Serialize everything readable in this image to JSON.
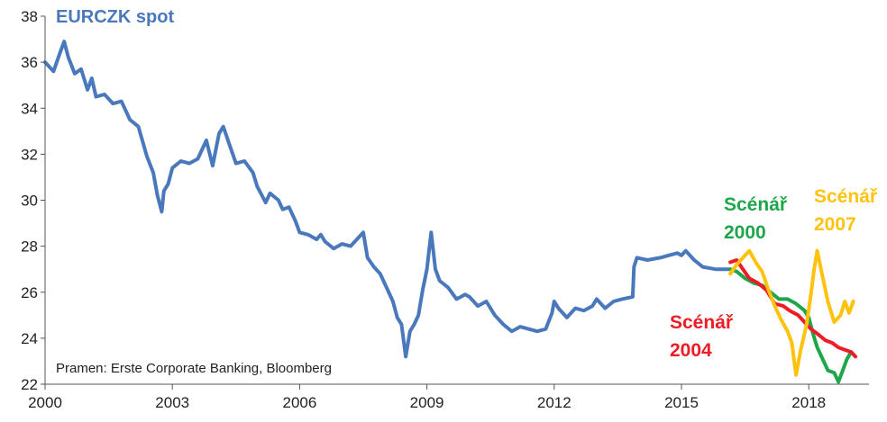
{
  "chart_data": {
    "type": "line",
    "title": "EURCZK spot",
    "xlabel": "",
    "ylabel": "",
    "xlim": [
      2000,
      2019.1
    ],
    "ylim": [
      22,
      38
    ],
    "x_ticks": [
      "2000",
      "2003",
      "2006",
      "2009",
      "2012",
      "2015",
      "2018"
    ],
    "y_ticks": [
      "22",
      "24",
      "26",
      "28",
      "30",
      "32",
      "34",
      "36",
      "38"
    ],
    "grid": false,
    "note": "Pramen: Erste Corporate Banking, Bloomberg",
    "colors": {
      "spot": "#4a78bd",
      "s2000": "#1fa64a",
      "s2004": "#ee1c25",
      "s2007": "#ffc20e",
      "axis": "#555555",
      "text": "#222222"
    },
    "series": [
      {
        "name": "EURCZK spot",
        "key": "spot",
        "points": [
          [
            2000.0,
            36.0
          ],
          [
            2000.2,
            35.6
          ],
          [
            2000.35,
            36.4
          ],
          [
            2000.45,
            36.9
          ],
          [
            2000.55,
            36.2
          ],
          [
            2000.7,
            35.5
          ],
          [
            2000.85,
            35.7
          ],
          [
            2001.0,
            34.8
          ],
          [
            2001.1,
            35.3
          ],
          [
            2001.2,
            34.5
          ],
          [
            2001.4,
            34.6
          ],
          [
            2001.6,
            34.2
          ],
          [
            2001.8,
            34.3
          ],
          [
            2002.0,
            33.5
          ],
          [
            2002.2,
            33.2
          ],
          [
            2002.4,
            31.9
          ],
          [
            2002.55,
            31.2
          ],
          [
            2002.65,
            30.2
          ],
          [
            2002.75,
            29.5
          ],
          [
            2002.8,
            30.4
          ],
          [
            2002.9,
            30.7
          ],
          [
            2003.0,
            31.4
          ],
          [
            2003.2,
            31.7
          ],
          [
            2003.4,
            31.6
          ],
          [
            2003.6,
            31.8
          ],
          [
            2003.8,
            32.6
          ],
          [
            2003.95,
            31.5
          ],
          [
            2004.1,
            32.9
          ],
          [
            2004.2,
            33.2
          ],
          [
            2004.35,
            32.4
          ],
          [
            2004.5,
            31.6
          ],
          [
            2004.7,
            31.7
          ],
          [
            2004.9,
            31.2
          ],
          [
            2005.0,
            30.6
          ],
          [
            2005.2,
            29.9
          ],
          [
            2005.3,
            30.3
          ],
          [
            2005.5,
            30.0
          ],
          [
            2005.6,
            29.6
          ],
          [
            2005.75,
            29.7
          ],
          [
            2005.9,
            29.1
          ],
          [
            2006.0,
            28.6
          ],
          [
            2006.2,
            28.5
          ],
          [
            2006.4,
            28.3
          ],
          [
            2006.5,
            28.5
          ],
          [
            2006.6,
            28.2
          ],
          [
            2006.8,
            27.9
          ],
          [
            2007.0,
            28.1
          ],
          [
            2007.2,
            28.0
          ],
          [
            2007.35,
            28.3
          ],
          [
            2007.5,
            28.6
          ],
          [
            2007.6,
            27.5
          ],
          [
            2007.75,
            27.1
          ],
          [
            2007.9,
            26.8
          ],
          [
            2008.0,
            26.4
          ],
          [
            2008.2,
            25.6
          ],
          [
            2008.3,
            24.9
          ],
          [
            2008.4,
            24.6
          ],
          [
            2008.5,
            23.2
          ],
          [
            2008.6,
            24.3
          ],
          [
            2008.7,
            24.6
          ],
          [
            2008.8,
            25.0
          ],
          [
            2008.9,
            26.1
          ],
          [
            2009.0,
            27.0
          ],
          [
            2009.1,
            28.6
          ],
          [
            2009.2,
            27.0
          ],
          [
            2009.3,
            26.5
          ],
          [
            2009.5,
            26.2
          ],
          [
            2009.7,
            25.7
          ],
          [
            2009.9,
            25.9
          ],
          [
            2010.0,
            25.8
          ],
          [
            2010.2,
            25.4
          ],
          [
            2010.4,
            25.6
          ],
          [
            2010.6,
            25.0
          ],
          [
            2010.8,
            24.6
          ],
          [
            2011.0,
            24.3
          ],
          [
            2011.2,
            24.5
          ],
          [
            2011.4,
            24.4
          ],
          [
            2011.6,
            24.3
          ],
          [
            2011.8,
            24.4
          ],
          [
            2011.95,
            25.1
          ],
          [
            2012.0,
            25.6
          ],
          [
            2012.1,
            25.3
          ],
          [
            2012.3,
            24.9
          ],
          [
            2012.5,
            25.3
          ],
          [
            2012.7,
            25.2
          ],
          [
            2012.9,
            25.4
          ],
          [
            2013.0,
            25.7
          ],
          [
            2013.2,
            25.3
          ],
          [
            2013.4,
            25.6
          ],
          [
            2013.6,
            25.7
          ],
          [
            2013.85,
            25.8
          ],
          [
            2013.88,
            27.1
          ],
          [
            2013.95,
            27.5
          ],
          [
            2014.2,
            27.4
          ],
          [
            2014.5,
            27.5
          ],
          [
            2014.7,
            27.6
          ],
          [
            2014.9,
            27.7
          ],
          [
            2015.0,
            27.6
          ],
          [
            2015.1,
            27.8
          ],
          [
            2015.3,
            27.4
          ],
          [
            2015.5,
            27.1
          ],
          [
            2015.8,
            27.0
          ],
          [
            2016.0,
            27.0
          ],
          [
            2016.15,
            27.0
          ]
        ]
      },
      {
        "name": "Scénář 2000",
        "key": "s2000",
        "points": [
          [
            2016.15,
            27.0
          ],
          [
            2016.3,
            26.9
          ],
          [
            2016.5,
            26.6
          ],
          [
            2016.7,
            26.4
          ],
          [
            2016.9,
            26.3
          ],
          [
            2017.1,
            26.0
          ],
          [
            2017.3,
            25.7
          ],
          [
            2017.5,
            25.7
          ],
          [
            2017.7,
            25.5
          ],
          [
            2017.9,
            25.2
          ],
          [
            2018.0,
            24.9
          ],
          [
            2018.1,
            24.2
          ],
          [
            2018.2,
            23.6
          ],
          [
            2018.35,
            23.0
          ],
          [
            2018.45,
            22.6
          ],
          [
            2018.6,
            22.5
          ],
          [
            2018.7,
            22.1
          ],
          [
            2018.8,
            22.6
          ],
          [
            2018.9,
            23.1
          ],
          [
            2019.0,
            23.4
          ],
          [
            2019.1,
            23.2
          ]
        ]
      },
      {
        "name": "Scénář 2004",
        "key": "s2004",
        "points": [
          [
            2016.15,
            27.3
          ],
          [
            2016.3,
            27.4
          ],
          [
            2016.45,
            27.0
          ],
          [
            2016.6,
            26.6
          ],
          [
            2016.8,
            26.4
          ],
          [
            2017.0,
            26.1
          ],
          [
            2017.2,
            25.5
          ],
          [
            2017.4,
            25.4
          ],
          [
            2017.55,
            25.2
          ],
          [
            2017.75,
            25.0
          ],
          [
            2017.9,
            24.7
          ],
          [
            2018.05,
            24.4
          ],
          [
            2018.2,
            24.2
          ],
          [
            2018.4,
            23.9
          ],
          [
            2018.55,
            23.8
          ],
          [
            2018.7,
            23.6
          ],
          [
            2018.85,
            23.5
          ],
          [
            2019.0,
            23.4
          ],
          [
            2019.1,
            23.2
          ]
        ]
      },
      {
        "name": "Scénář 2007",
        "key": "s2007",
        "points": [
          [
            2016.15,
            26.8
          ],
          [
            2016.3,
            27.2
          ],
          [
            2016.45,
            27.5
          ],
          [
            2016.6,
            27.8
          ],
          [
            2016.75,
            27.3
          ],
          [
            2016.9,
            26.9
          ],
          [
            2017.05,
            26.1
          ],
          [
            2017.2,
            25.4
          ],
          [
            2017.35,
            24.8
          ],
          [
            2017.5,
            24.3
          ],
          [
            2017.6,
            23.8
          ],
          [
            2017.7,
            22.4
          ],
          [
            2017.8,
            23.4
          ],
          [
            2017.95,
            24.6
          ],
          [
            2018.05,
            25.9
          ],
          [
            2018.12,
            26.9
          ],
          [
            2018.2,
            27.8
          ],
          [
            2018.3,
            26.9
          ],
          [
            2018.45,
            25.6
          ],
          [
            2018.6,
            24.7
          ],
          [
            2018.75,
            25.0
          ],
          [
            2018.85,
            25.6
          ],
          [
            2018.95,
            25.1
          ],
          [
            2019.05,
            25.6
          ]
        ]
      }
    ],
    "labels": [
      {
        "series": "s2000",
        "lines": [
          "Scénář",
          "2000"
        ]
      },
      {
        "series": "s2007",
        "lines": [
          "Scénář",
          "2007"
        ]
      },
      {
        "series": "s2004",
        "lines": [
          "Scénář",
          "2004"
        ]
      }
    ]
  }
}
